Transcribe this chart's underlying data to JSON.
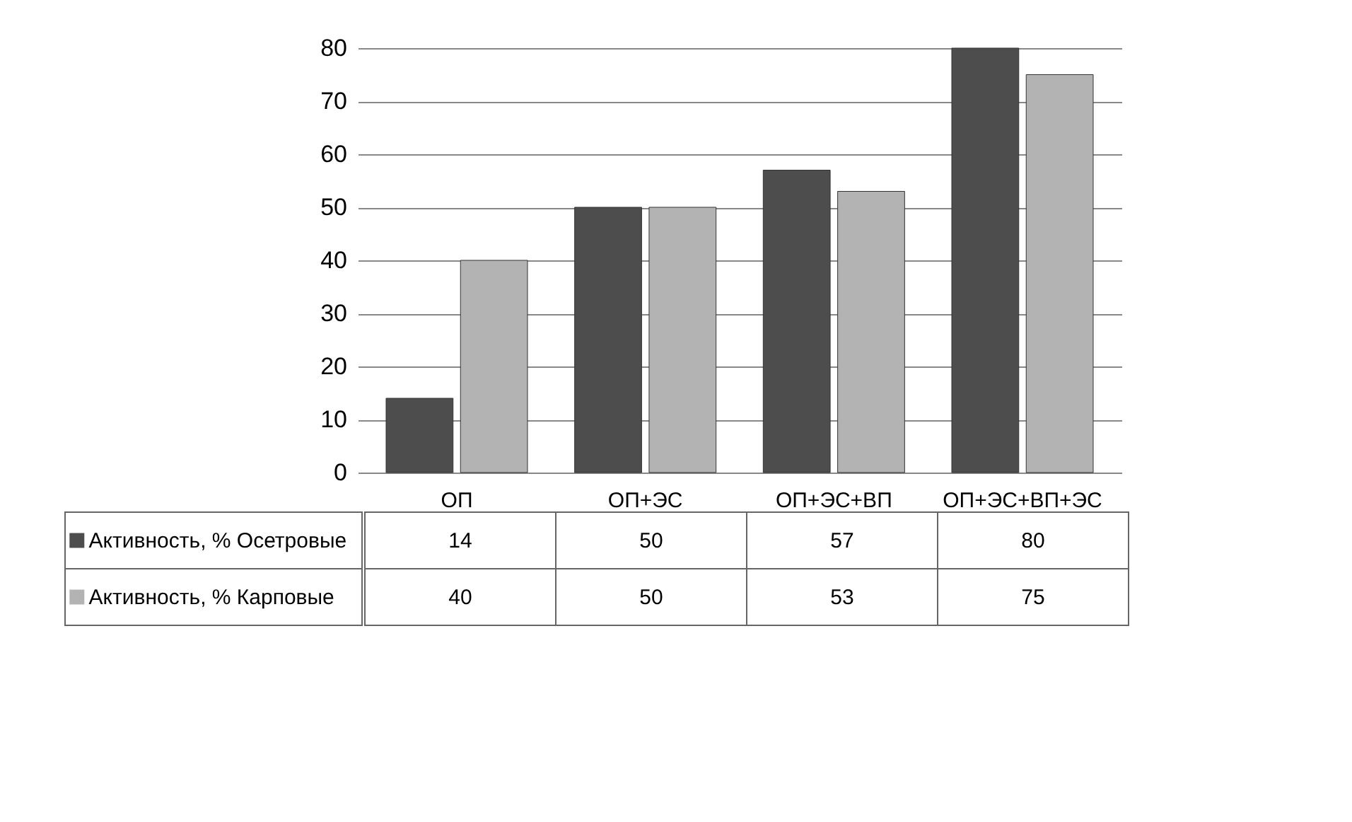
{
  "chart_data": {
    "type": "bar",
    "categories": [
      "ОП",
      "ОП+ЭС",
      "ОП+ЭС+ВП",
      "ОП+ЭС+ВП+ЭС"
    ],
    "series": [
      {
        "name": "Активность, % Осетровые",
        "color": "#4d4d4d",
        "values": [
          14,
          50,
          57,
          80
        ]
      },
      {
        "name": "Активность, % Карповые",
        "color": "#b3b3b3",
        "values": [
          40,
          50,
          53,
          75
        ]
      }
    ],
    "ylim": [
      0,
      80
    ],
    "yticks": [
      0,
      10,
      20,
      30,
      40,
      50,
      60,
      70,
      80
    ],
    "grid": "y",
    "legend": "bottom left",
    "data_labels": true
  }
}
